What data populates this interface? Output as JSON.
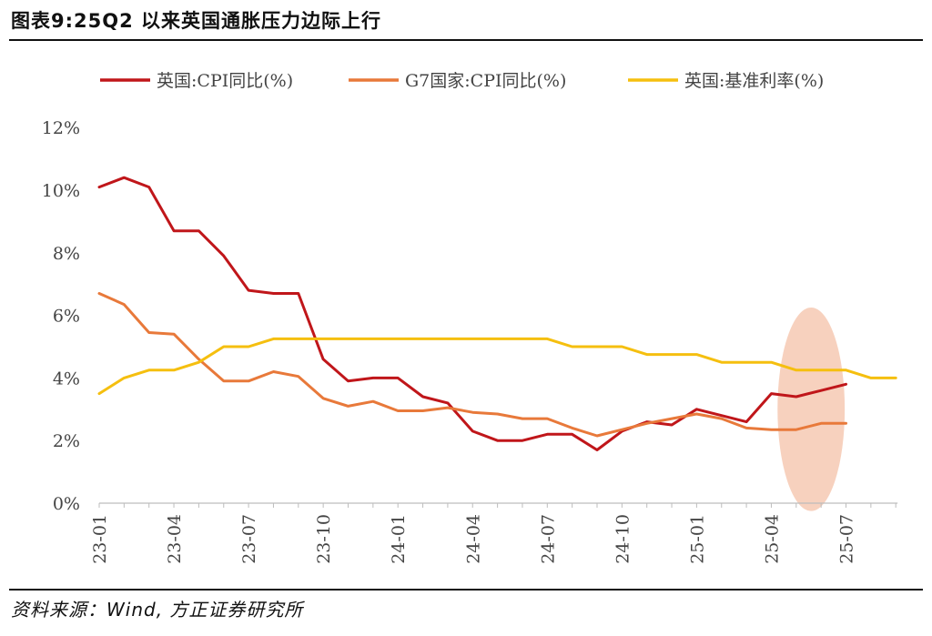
{
  "header": {
    "title": "图表9:25Q2 以来英国通胀压力边际上行"
  },
  "footer": {
    "source": "资料来源：Wind, 方正证券研究所"
  },
  "chart_data": {
    "type": "line",
    "title": "图表9:25Q2 以来英国通胀压力边际上行",
    "xlabel": "",
    "ylabel": "",
    "ylim": [
      0,
      12
    ],
    "yticks": [
      "0%",
      "2%",
      "4%",
      "6%",
      "8%",
      "10%",
      "12%"
    ],
    "grid": false,
    "legend_position": "top",
    "x_tick_labels": [
      "23-01",
      "23-04",
      "23-07",
      "23-10",
      "24-01",
      "24-04",
      "24-07",
      "24-10",
      "25-01",
      "25-04",
      "25-07"
    ],
    "x_tick_positions": [
      0,
      3,
      6,
      9,
      12,
      15,
      18,
      21,
      24,
      27,
      30
    ],
    "x_count": 33,
    "series": [
      {
        "name": "英国:CPI同比(%)",
        "color": "#c0161a",
        "values": [
          10.1,
          10.4,
          10.1,
          8.7,
          8.7,
          7.9,
          6.8,
          6.7,
          6.7,
          4.6,
          3.9,
          4.0,
          4.0,
          3.4,
          3.2,
          2.3,
          2.0,
          2.0,
          2.2,
          2.2,
          1.7,
          2.3,
          2.6,
          2.5,
          3.0,
          2.8,
          2.6,
          3.5,
          3.4,
          3.6,
          3.8
        ]
      },
      {
        "name": "G7国家:CPI同比(%)",
        "color": "#e8793a",
        "values": [
          6.7,
          6.35,
          5.45,
          5.4,
          4.6,
          3.9,
          3.9,
          4.2,
          4.05,
          3.35,
          3.1,
          3.25,
          2.95,
          2.95,
          3.05,
          2.9,
          2.85,
          2.7,
          2.7,
          2.4,
          2.15,
          2.35,
          2.55,
          2.7,
          2.85,
          2.7,
          2.4,
          2.35,
          2.35,
          2.55,
          2.55
        ]
      },
      {
        "name": "英国:基准利率(%)",
        "color": "#f5bf0f",
        "values": [
          3.5,
          4.0,
          4.25,
          4.25,
          4.5,
          5.0,
          5.0,
          5.25,
          5.25,
          5.25,
          5.25,
          5.25,
          5.25,
          5.25,
          5.25,
          5.25,
          5.25,
          5.25,
          5.25,
          5.0,
          5.0,
          5.0,
          4.75,
          4.75,
          4.75,
          4.5,
          4.5,
          4.5,
          4.25,
          4.25,
          4.25,
          4.0,
          4.0
        ]
      }
    ],
    "highlight": {
      "x_center": 28.6,
      "y_center": 3.0,
      "x_radius": 1.35,
      "y_radius": 3.25,
      "color": "#f2b89b"
    }
  }
}
